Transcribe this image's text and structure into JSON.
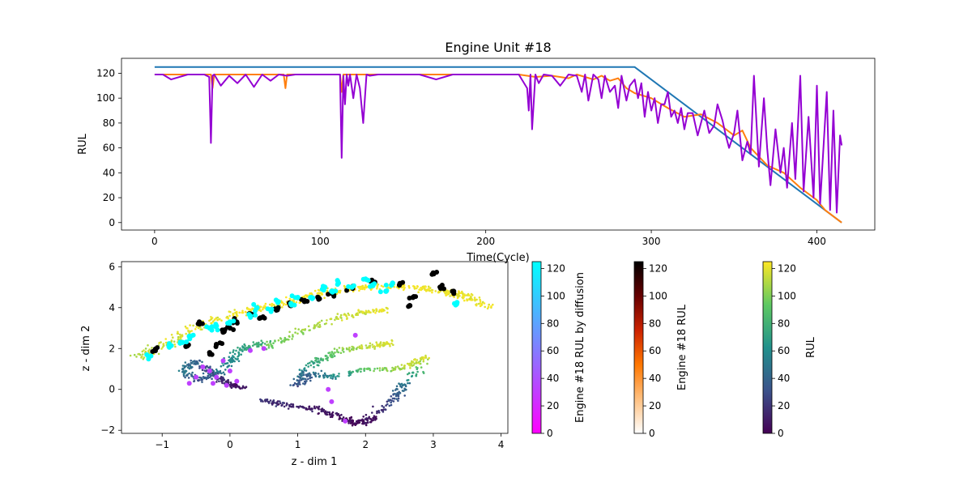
{
  "chart_data": [
    {
      "type": "line",
      "title": "Engine Unit #18",
      "xlabel": "Time(Cycle)",
      "ylabel": "RUL",
      "xlim": [
        -20,
        435
      ],
      "ylim": [
        -6,
        132
      ],
      "xticks": [
        0,
        100,
        200,
        300,
        400
      ],
      "yticks": [
        0,
        20,
        40,
        60,
        80,
        100,
        120
      ],
      "grid": false,
      "series": [
        {
          "color": "#1f77b4",
          "x": [
            0,
            290,
            415
          ],
          "y": [
            125,
            125,
            0
          ]
        },
        {
          "color": "#ff7f0e",
          "x": [
            0,
            25,
            34,
            35,
            36,
            78,
            79,
            80,
            112,
            113,
            114,
            115,
            220,
            230,
            240,
            250,
            255,
            260,
            265,
            270,
            275,
            280,
            285,
            290,
            300,
            310,
            320,
            330,
            340,
            350,
            355,
            360,
            370,
            380,
            390,
            400,
            405,
            410,
            415
          ],
          "y": [
            119,
            119,
            119,
            108,
            119,
            119,
            108,
            119,
            119,
            105,
            119,
            119,
            119,
            117,
            118,
            116,
            119,
            117,
            115,
            118,
            114,
            116,
            108,
            104,
            100,
            92,
            85,
            87,
            80,
            70,
            74,
            60,
            46,
            40,
            28,
            18,
            10,
            5,
            0
          ]
        },
        {
          "color": "#9400d3",
          "x": [
            0,
            5,
            10,
            20,
            30,
            33,
            34,
            35,
            36,
            40,
            45,
            50,
            55,
            60,
            65,
            70,
            75,
            80,
            85,
            100,
            110,
            112,
            113,
            114,
            115,
            116,
            117,
            118,
            120,
            122,
            124,
            126,
            128,
            130,
            135,
            140,
            150,
            160,
            170,
            180,
            190,
            200,
            210,
            220,
            225,
            226,
            227,
            228,
            230,
            232,
            235,
            240,
            245,
            250,
            255,
            258,
            260,
            262,
            265,
            268,
            270,
            272,
            275,
            278,
            280,
            282,
            285,
            287,
            290,
            292,
            294,
            296,
            298,
            300,
            302,
            304,
            306,
            308,
            310,
            312,
            314,
            316,
            318,
            320,
            322,
            325,
            328,
            330,
            332,
            335,
            338,
            340,
            343,
            345,
            347,
            350,
            352,
            355,
            358,
            360,
            362,
            365,
            368,
            370,
            372,
            375,
            378,
            380,
            382,
            385,
            387,
            390,
            392,
            395,
            398,
            400,
            402,
            404,
            406,
            408,
            410,
            412,
            414,
            415
          ],
          "y": [
            119,
            119,
            115,
            119,
            119,
            117,
            64,
            118,
            119,
            110,
            118,
            112,
            119,
            109,
            119,
            114,
            119,
            118,
            119,
            119,
            119,
            119,
            52,
            118,
            95,
            119,
            110,
            119,
            100,
            119,
            108,
            80,
            119,
            118,
            119,
            119,
            119,
            119,
            115,
            119,
            119,
            119,
            119,
            119,
            108,
            90,
            119,
            75,
            119,
            112,
            119,
            118,
            110,
            119,
            118,
            105,
            119,
            98,
            119,
            115,
            100,
            118,
            105,
            110,
            92,
            118,
            98,
            110,
            115,
            100,
            112,
            85,
            105,
            90,
            100,
            80,
            95,
            95,
            105,
            85,
            90,
            80,
            92,
            75,
            88,
            88,
            70,
            80,
            90,
            72,
            78,
            95,
            82,
            70,
            60,
            72,
            90,
            50,
            65,
            55,
            118,
            45,
            100,
            60,
            30,
            75,
            40,
            60,
            28,
            80,
            35,
            118,
            25,
            85,
            20,
            110,
            15,
            60,
            105,
            10,
            90,
            8,
            70,
            62
          ]
        }
      ]
    },
    {
      "type": "scatter",
      "title": "",
      "xlabel": "z - dim 1",
      "ylabel": "z - dim 2",
      "xlim": [
        -1.6,
        4.1
      ],
      "ylim": [
        -2.15,
        6.25
      ],
      "xticks": [
        -1,
        0,
        1,
        2,
        3,
        4
      ],
      "yticks": [
        -2,
        0,
        2,
        4,
        6
      ],
      "grid": false,
      "colorbars": [
        {
          "label": "Engine #18 RUL by diffusion",
          "colormap": "cool",
          "ticks": [
            0,
            20,
            40,
            60,
            80,
            100,
            120
          ],
          "range": [
            0,
            125
          ]
        },
        {
          "label": "Engine #18 RUL",
          "colormap": "gist_heat_r",
          "ticks": [
            0,
            20,
            40,
            60,
            80,
            100,
            120
          ],
          "range": [
            0,
            125
          ]
        },
        {
          "label": "RUL",
          "colormap": "viridis",
          "ticks": [
            0,
            20,
            40,
            60,
            80,
            100,
            120
          ],
          "range": [
            0,
            125
          ]
        }
      ],
      "clusters": [
        {
          "name": "upper band",
          "series_colormap": "viridis",
          "path": [
            [
              -1.3,
              1.6
            ],
            [
              -0.9,
              2.3
            ],
            [
              -0.5,
              3.1
            ],
            [
              0,
              3.6
            ],
            [
              0.5,
              4.0
            ],
            [
              1,
              4.4
            ],
            [
              1.5,
              4.8
            ],
            [
              2,
              5.0
            ],
            [
              2.5,
              5.0
            ],
            [
              3,
              4.9
            ],
            [
              3.4,
              4.6
            ],
            [
              3.8,
              4.1
            ]
          ],
          "rul": [
            110,
            115,
            120,
            122,
            124,
            124,
            124,
            124,
            124,
            123,
            122,
            120
          ],
          "spread": 0.22,
          "count": 520
        },
        {
          "name": "middle band",
          "series_colormap": "viridis",
          "path": [
            [
              0.5,
              2.0
            ],
            [
              1,
              2.8
            ],
            [
              1.5,
              3.4
            ],
            [
              2,
              3.8
            ],
            [
              2.3,
              3.9
            ]
          ],
          "rul": [
            95,
            105,
            112,
            118,
            120
          ],
          "spread": 0.18,
          "count": 150
        },
        {
          "name": "left curl",
          "series_colormap": "viridis",
          "path": [
            [
              0.5,
              2.3
            ],
            [
              0.2,
              2.0
            ],
            [
              0,
              1.4
            ],
            [
              -0.2,
              0.8
            ],
            [
              -0.5,
              0.4
            ],
            [
              -0.7,
              0.9
            ],
            [
              -0.5,
              1.4
            ],
            [
              -0.2,
              0.6
            ],
            [
              0,
              0.2
            ],
            [
              0.2,
              0.1
            ]
          ],
          "rul": [
            80,
            70,
            60,
            45,
            30,
            50,
            40,
            20,
            10,
            5
          ],
          "spread": 0.15,
          "count": 330
        },
        {
          "name": "lower loop",
          "series_colormap": "viridis",
          "path": [
            [
              0.5,
              -0.5
            ],
            [
              0.8,
              -0.8
            ],
            [
              1.2,
              -0.9
            ],
            [
              1.6,
              -1.3
            ],
            [
              1.9,
              -1.7
            ],
            [
              2.1,
              -1.4
            ],
            [
              2.4,
              -0.5
            ],
            [
              2.6,
              0.3
            ],
            [
              2.9,
              1.6
            ],
            [
              2.5,
              1.0
            ],
            [
              2.0,
              1.0
            ],
            [
              1.5,
              0.6
            ],
            [
              1.2,
              0.8
            ],
            [
              1.0,
              0.2
            ],
            [
              1.2,
              1.2
            ],
            [
              1.6,
              1.9
            ],
            [
              2.1,
              2.1
            ],
            [
              2.4,
              2.3
            ]
          ],
          "rul": [
            20,
            15,
            10,
            5,
            3,
            8,
            30,
            50,
            120,
            110,
            90,
            60,
            40,
            30,
            70,
            100,
            115,
            120
          ],
          "spread": 0.16,
          "count": 650
        }
      ],
      "engine_points": {
        "black": [
          [
            -0.2,
            2.2
          ],
          [
            -0.1,
            2.8
          ],
          [
            0.1,
            3.3
          ],
          [
            0.3,
            3.7
          ],
          [
            0.7,
            3.9
          ],
          [
            1.1,
            4.3
          ],
          [
            1.5,
            4.7
          ],
          [
            1.8,
            5.0
          ],
          [
            2.1,
            5.3
          ],
          [
            2.5,
            5.1
          ],
          [
            2.7,
            4.5
          ],
          [
            3.1,
            5.0
          ],
          [
            3.3,
            4.8
          ],
          [
            0.0,
            3.0
          ],
          [
            0.45,
            3.5
          ],
          [
            -0.3,
            1.8
          ],
          [
            3.0,
            5.7
          ],
          [
            2.65,
            4.1
          ],
          [
            1.3,
            4.5
          ],
          [
            0.9,
            4.1
          ],
          [
            -0.45,
            3.2
          ],
          [
            -1.1,
            1.9
          ],
          [
            -0.65,
            2.1
          ]
        ],
        "cyan": [
          [
            -1.2,
            1.6
          ],
          [
            -0.9,
            2.1
          ],
          [
            -0.6,
            2.6
          ],
          [
            -0.3,
            3.0
          ],
          [
            0.0,
            3.3
          ],
          [
            0.3,
            3.6
          ],
          [
            0.6,
            3.9
          ],
          [
            0.9,
            4.2
          ],
          [
            1.2,
            4.5
          ],
          [
            1.5,
            4.8
          ],
          [
            1.8,
            5.0
          ],
          [
            2.1,
            5.1
          ],
          [
            2.4,
            5.2
          ],
          [
            1.6,
            5.2
          ],
          [
            2.0,
            5.4
          ],
          [
            1.0,
            4.5
          ],
          [
            0.4,
            4.0
          ],
          [
            -0.2,
            3.1
          ],
          [
            2.3,
            4.8
          ],
          [
            -0.7,
            2.3
          ],
          [
            3.35,
            4.25
          ],
          [
            1.4,
            5.0
          ],
          [
            0.7,
            4.3
          ]
        ],
        "purple": [
          [
            -0.1,
            1.4
          ],
          [
            -0.3,
            0.9
          ],
          [
            -0.5,
            0.6
          ],
          [
            -0.25,
            0.3
          ],
          [
            -0.05,
            0.2
          ],
          [
            0.1,
            0.4
          ],
          [
            -0.4,
            1.1
          ],
          [
            0.0,
            0.9
          ],
          [
            -0.2,
            0.6
          ],
          [
            0.3,
            1.9
          ],
          [
            1.45,
            0.0
          ],
          [
            1.5,
            -0.6
          ],
          [
            0.5,
            2.0
          ],
          [
            1.85,
            2.65
          ],
          [
            -0.6,
            0.3
          ],
          [
            1.7,
            -1.55
          ]
        ]
      }
    }
  ]
}
